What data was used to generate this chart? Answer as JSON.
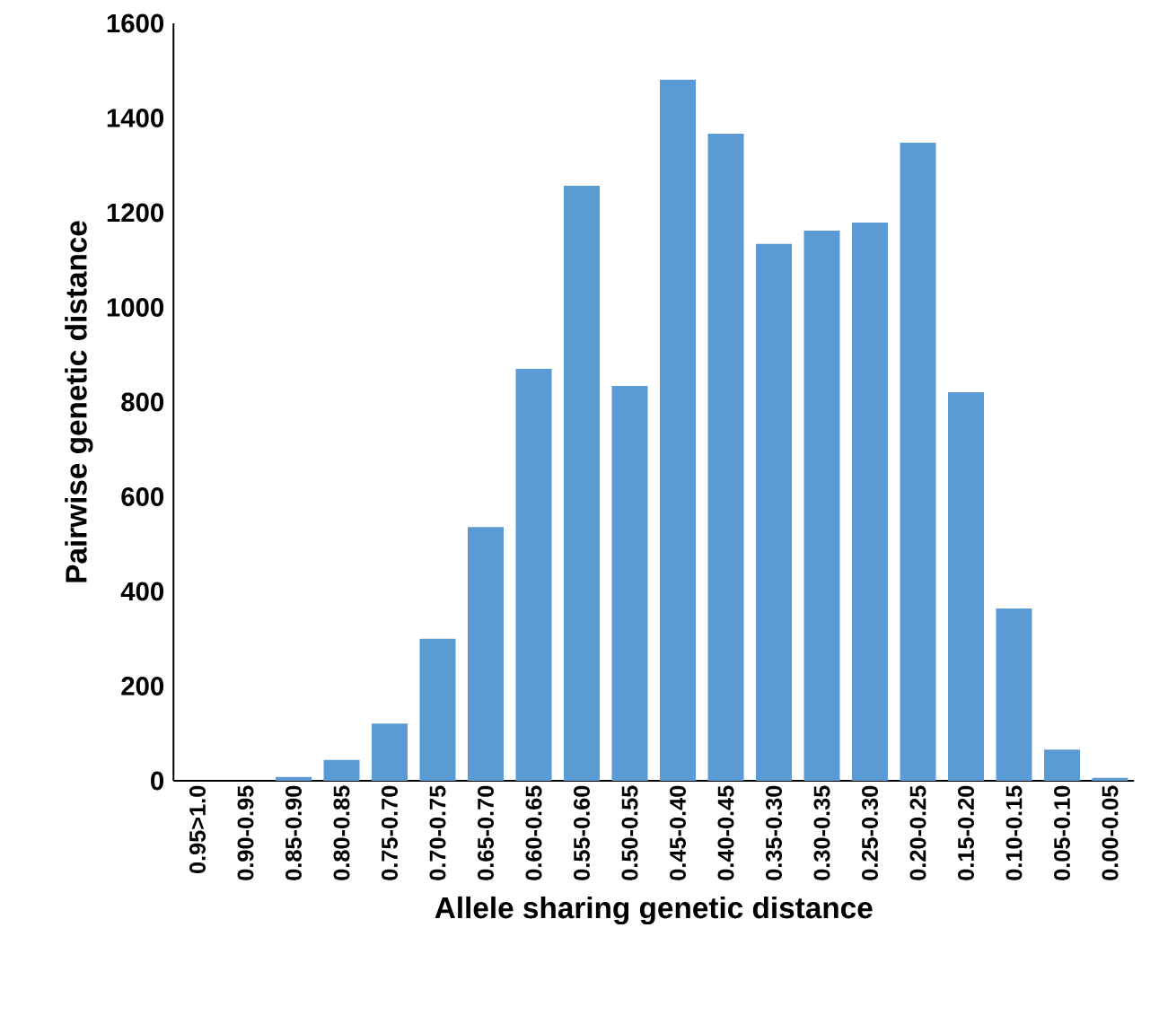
{
  "chart_data": {
    "type": "bar",
    "xlabel": "Allele sharing genetic distance",
    "ylabel": "Pairwise genetic distance",
    "categories": [
      "0.95>1.0",
      "0.90-0.95",
      "0.85-0.90",
      "0.80-0.85",
      "0.75-0.70",
      "0.70-0.75",
      "0.65-0.70",
      "0.60-0.65",
      "0.55-0.60",
      "0.50-0.55",
      "0.45-0.40",
      "0.40-0.45",
      "0.35-0.30",
      "0.30-0.35",
      "0.25-0.30",
      "0.20-0.25",
      "0.15-0.20",
      "0.10-0.15",
      "0.05-0.10",
      "0.00-0.05"
    ],
    "values": [
      0,
      0,
      8,
      44,
      121,
      300,
      536,
      870,
      1257,
      834,
      1481,
      1367,
      1134,
      1162,
      1179,
      1348,
      821,
      364,
      66,
      6
    ],
    "color": "#5b9bd5",
    "ylim": [
      0,
      1600
    ],
    "yticks": [
      0,
      200,
      400,
      600,
      800,
      1000,
      1200,
      1400,
      1600
    ]
  }
}
